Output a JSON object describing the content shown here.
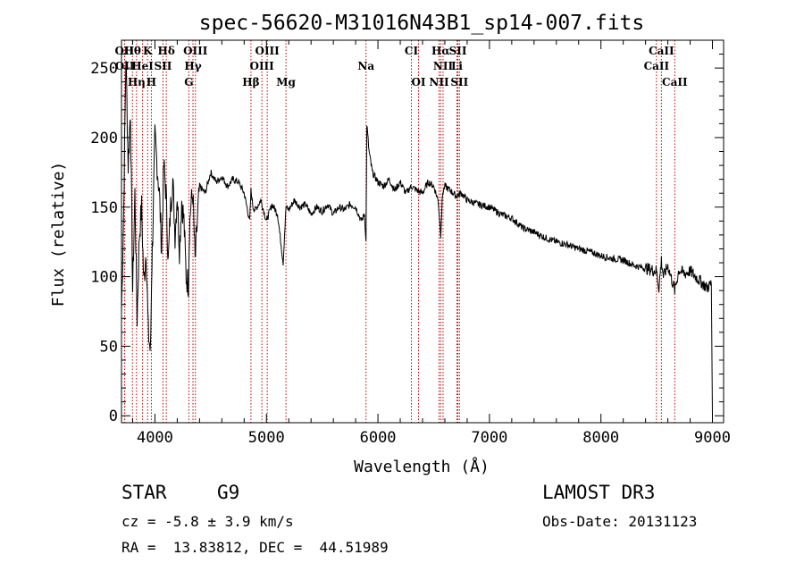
{
  "chart_data": {
    "type": "line",
    "title": "spec-56620-M31016N43B1_sp14-007.fits",
    "xlabel": "Wavelength (Å)",
    "ylabel": "Flux (relative)",
    "xlim": [
      3700,
      9100
    ],
    "ylim": [
      -5,
      270
    ],
    "xticks": [
      4000,
      5000,
      6000,
      7000,
      8000,
      9000
    ],
    "yticks": [
      0,
      50,
      100,
      150,
      200,
      250
    ],
    "grid": false,
    "series": [
      {
        "name": "spectrum",
        "x": [
          3700,
          3720,
          3740,
          3760,
          3780,
          3800,
          3820,
          3840,
          3860,
          3880,
          3900,
          3920,
          3940,
          3960,
          3970,
          3980,
          4000,
          4020,
          4040,
          4060,
          4080,
          4100,
          4120,
          4140,
          4160,
          4180,
          4200,
          4220,
          4240,
          4260,
          4280,
          4300,
          4310,
          4320,
          4340,
          4360,
          4380,
          4400,
          4450,
          4500,
          4550,
          4600,
          4650,
          4700,
          4750,
          4800,
          4850,
          4861,
          4880,
          4900,
          4950,
          5000,
          5050,
          5100,
          5150,
          5175,
          5200,
          5250,
          5300,
          5350,
          5400,
          5450,
          5500,
          5550,
          5600,
          5650,
          5700,
          5750,
          5800,
          5850,
          5880,
          5893,
          5900,
          5920,
          5950,
          6000,
          6050,
          6100,
          6150,
          6200,
          6250,
          6300,
          6350,
          6400,
          6450,
          6500,
          6540,
          6563,
          6580,
          6600,
          6650,
          6700,
          6750,
          6800,
          6900,
          7000,
          7100,
          7200,
          7300,
          7400,
          7500,
          7600,
          7700,
          7800,
          7900,
          8000,
          8100,
          8200,
          8300,
          8400,
          8498,
          8520,
          8542,
          8560,
          8600,
          8662,
          8700,
          8750,
          8800,
          8850,
          8900,
          8950,
          8990,
          9000
        ],
        "values": [
          75,
          150,
          260,
          180,
          220,
          90,
          160,
          70,
          130,
          150,
          95,
          120,
          60,
          45,
          100,
          130,
          200,
          180,
          160,
          120,
          180,
          160,
          110,
          150,
          170,
          130,
          160,
          120,
          155,
          140,
          100,
          95,
          135,
          150,
          160,
          110,
          140,
          165,
          160,
          175,
          168,
          172,
          165,
          170,
          168,
          160,
          140,
          162,
          150,
          148,
          155,
          140,
          152,
          145,
          110,
          150,
          148,
          155,
          150,
          152,
          145,
          150,
          147,
          152,
          145,
          150,
          148,
          152,
          150,
          140,
          145,
          125,
          210,
          190,
          175,
          168,
          165,
          170,
          162,
          168,
          160,
          165,
          162,
          160,
          168,
          165,
          155,
          130,
          160,
          165,
          162,
          158,
          160,
          155,
          152,
          150,
          145,
          142,
          135,
          132,
          128,
          125,
          123,
          120,
          118,
          115,
          113,
          112,
          108,
          106,
          104,
          92,
          112,
          100,
          108,
          90,
          105,
          102,
          104,
          100,
          96,
          92,
          95,
          0
        ]
      }
    ],
    "lines": [
      {
        "label": "Hθ",
        "wavelength": 3798
      },
      {
        "label": "K",
        "wavelength": 3934
      },
      {
        "label": "Hδ",
        "wavelength": 4102
      },
      {
        "label": "OIII",
        "wavelength": 4363
      },
      {
        "label": "OIII",
        "wavelength": 5007
      },
      {
        "label": "CI",
        "wavelength": 6300
      },
      {
        "label": "Hα",
        "wavelength": 6563
      },
      {
        "label": "SII",
        "wavelength": 6717
      },
      {
        "label": "CaII",
        "wavelength": 8542
      },
      {
        "label": "OII",
        "wavelength": 3727
      },
      {
        "label": "HeI",
        "wavelength": 3889
      },
      {
        "label": "SII",
        "wavelength": 4072
      },
      {
        "label": "Hγ",
        "wavelength": 4341
      },
      {
        "label": "OIII",
        "wavelength": 4959
      },
      {
        "label": "Na",
        "wavelength": 5893
      },
      {
        "label": "NII",
        "wavelength": 6584
      },
      {
        "label": "Li",
        "wavelength": 6708
      },
      {
        "label": "CaII",
        "wavelength": 8498
      },
      {
        "label": "OII",
        "wavelength": 3729
      },
      {
        "label": "Hη",
        "wavelength": 3835
      },
      {
        "label": "H",
        "wavelength": 3968
      },
      {
        "label": "G",
        "wavelength": 4304
      },
      {
        "label": "Hβ",
        "wavelength": 4861
      },
      {
        "label": "Mg",
        "wavelength": 5175
      },
      {
        "label": "OI",
        "wavelength": 6364
      },
      {
        "label": "NII",
        "wavelength": 6548
      },
      {
        "label": "SII",
        "wavelength": 6731
      },
      {
        "label": "CaII",
        "wavelength": 8662
      }
    ]
  },
  "info": {
    "class": "STAR",
    "subclass": "G9",
    "survey": "LAMOST DR3",
    "cz": "cz = -5.8 ± 3.9 km/s",
    "obs_date": "Obs-Date: 20131123",
    "coords": "RA =  13.83812, DEC =  44.51989"
  }
}
